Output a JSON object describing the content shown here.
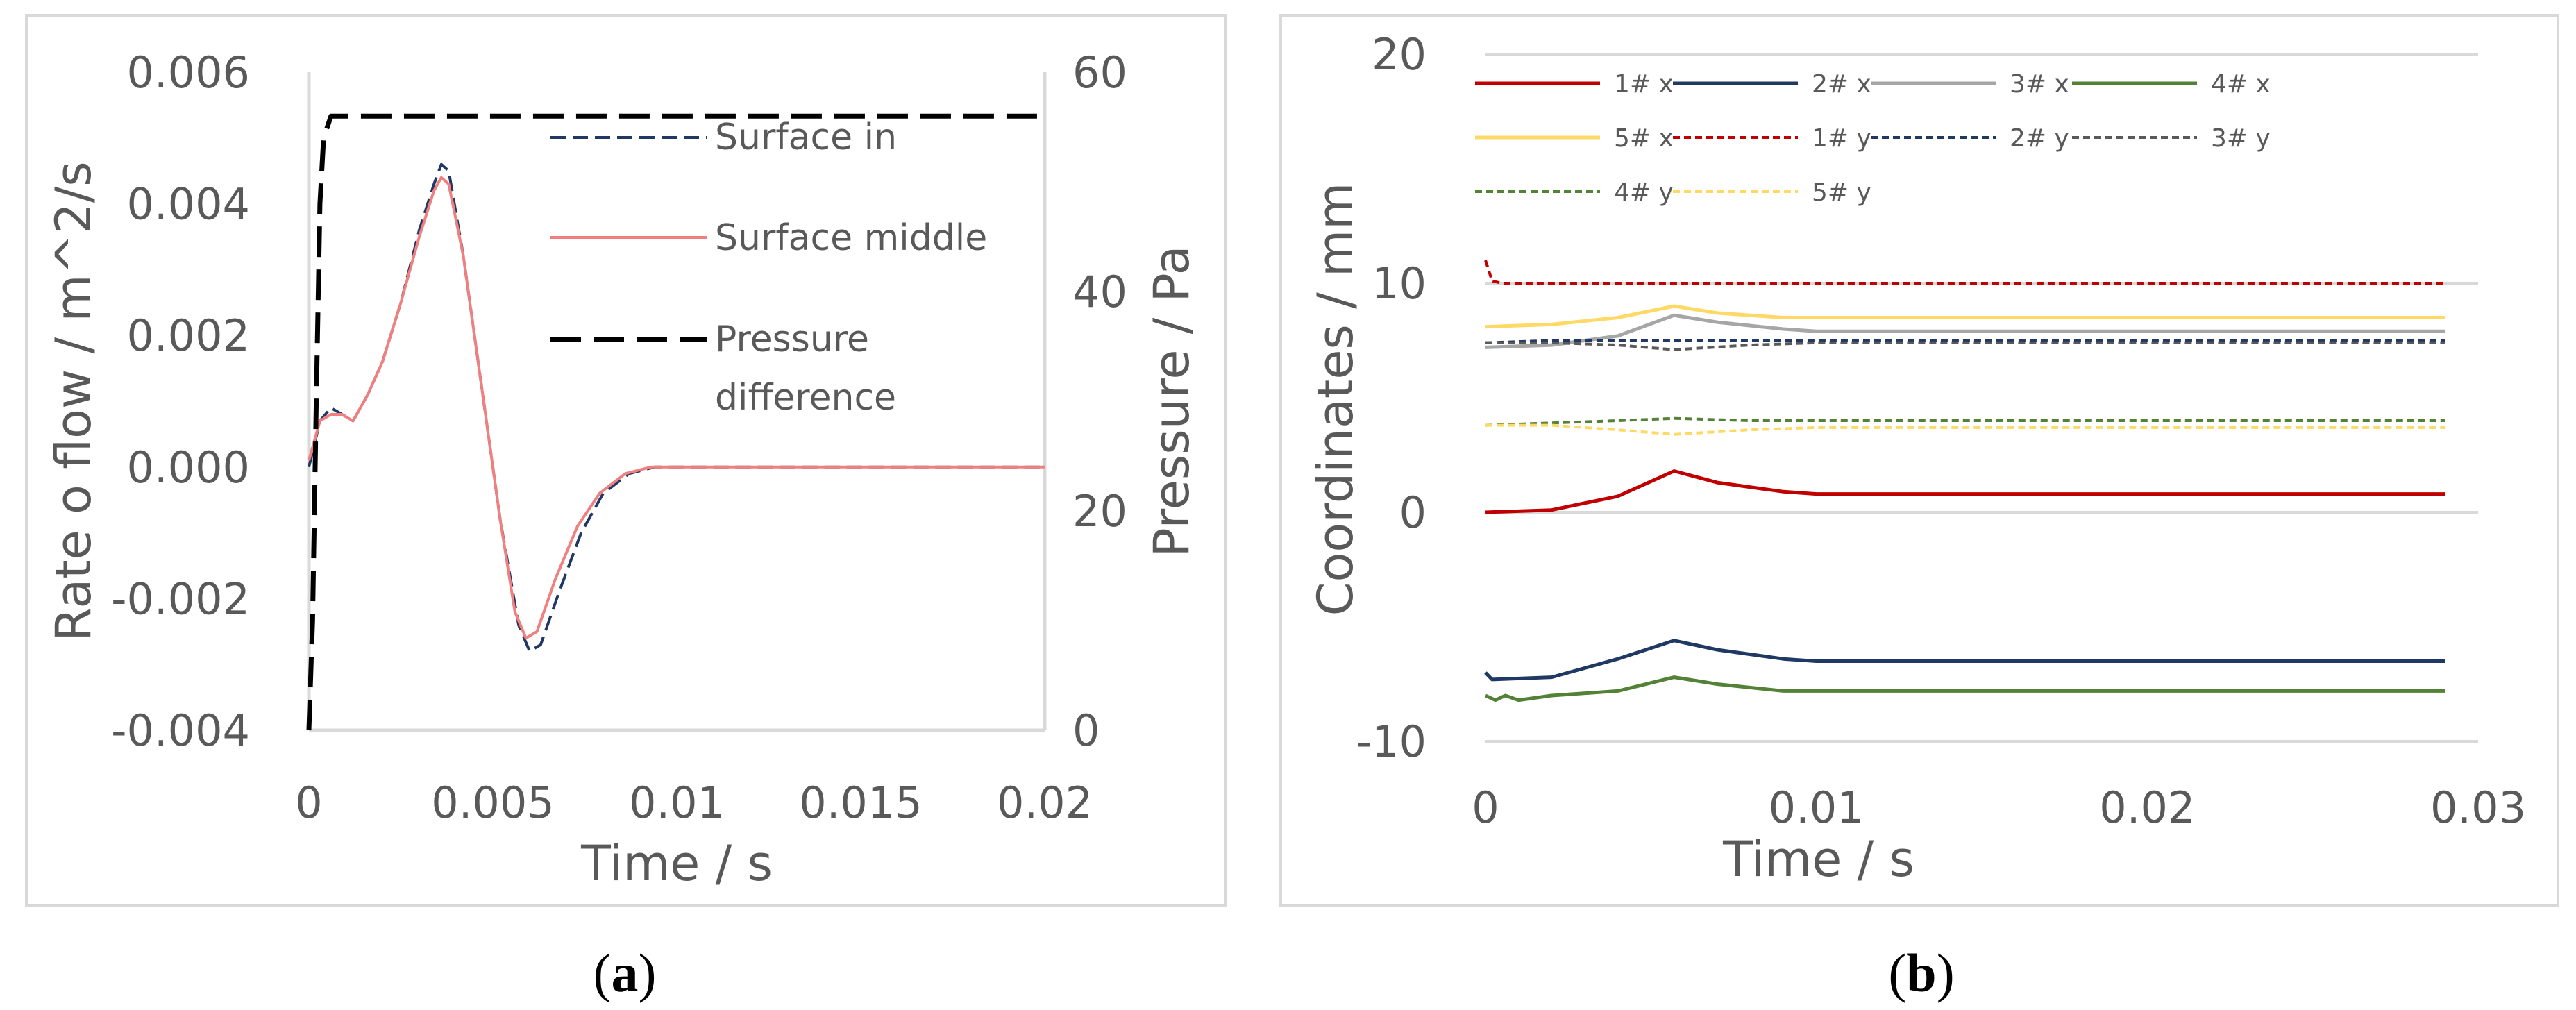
{
  "chart_data": [
    {
      "type": "line",
      "panel_label": "a",
      "xlabel": "Time / s",
      "ylabel": "Rate o flow / m^2/s",
      "y2label": "Pressure / Pa",
      "xlim": [
        0,
        0.02
      ],
      "ylim": [
        -0.004,
        0.006
      ],
      "y2lim": [
        0,
        60
      ],
      "xticks": [
        "0",
        "0.005",
        "0.01",
        "0.015",
        "0.02"
      ],
      "yticks": [
        "-0.004",
        "-0.002",
        "0.000",
        "0.002",
        "0.004",
        "0.006"
      ],
      "y2ticks": [
        "0",
        "20",
        "40",
        "60"
      ],
      "legend_position": "top-right",
      "series": [
        {
          "name": "Surface in",
          "axis": "left",
          "color": "#1f3864",
          "dash": "dashed",
          "x": [
            0,
            0.0003,
            0.0006,
            0.0009,
            0.0012,
            0.0016,
            0.002,
            0.0025,
            0.003,
            0.0034,
            0.0036,
            0.0038,
            0.0042,
            0.0047,
            0.0052,
            0.0057,
            0.006,
            0.0063,
            0.0068,
            0.0074,
            0.008,
            0.0087,
            0.0094,
            0.01,
            0.012,
            0.014,
            0.016,
            0.018,
            0.02
          ],
          "y": [
            0.0,
            0.0007,
            0.0009,
            0.0008,
            0.0007,
            0.0011,
            0.0016,
            0.0025,
            0.0036,
            0.0043,
            0.0046,
            0.0045,
            0.0032,
            0.0012,
            -0.0008,
            -0.0024,
            -0.0028,
            -0.0027,
            -0.0019,
            -0.001,
            -0.0004,
            -0.0001,
            0.0,
            0.0,
            0.0,
            0.0,
            0.0,
            0.0,
            0.0
          ]
        },
        {
          "name": "Surface middle",
          "axis": "left",
          "color": "#f08080",
          "dash": "solid",
          "x": [
            0,
            0.0003,
            0.0006,
            0.0009,
            0.0012,
            0.0016,
            0.002,
            0.0025,
            0.003,
            0.0034,
            0.0036,
            0.0038,
            0.0042,
            0.0047,
            0.0052,
            0.0056,
            0.0059,
            0.0062,
            0.0067,
            0.0073,
            0.0079,
            0.0086,
            0.0093,
            0.01,
            0.012,
            0.014,
            0.016,
            0.018,
            0.02
          ],
          "y": [
            0.0001,
            0.0007,
            0.0008,
            0.0008,
            0.0007,
            0.0011,
            0.0016,
            0.0025,
            0.0035,
            0.0042,
            0.0044,
            0.0043,
            0.0032,
            0.0012,
            -0.0008,
            -0.0022,
            -0.0026,
            -0.0025,
            -0.0017,
            -0.0009,
            -0.0004,
            -0.0001,
            0.0,
            0.0,
            0.0,
            0.0,
            0.0,
            0.0,
            0.0
          ]
        },
        {
          "name": "Pressure difference",
          "axis": "right",
          "color": "#000000",
          "dash": "longdash",
          "x": [
            0,
            0.0001,
            0.0002,
            0.0003,
            0.0004,
            0.0006,
            0.001,
            0.005,
            0.01,
            0.015,
            0.02
          ],
          "y": [
            0,
            10,
            30,
            48,
            54,
            56,
            56,
            56,
            56,
            56,
            56
          ]
        }
      ]
    },
    {
      "type": "line",
      "panel_label": "b",
      "xlabel": "Time / s",
      "ylabel": "Coordinates / mm",
      "xlim": [
        0,
        0.03
      ],
      "ylim": [
        -10,
        20
      ],
      "xticks": [
        "0",
        "0.01",
        "0.02",
        "0.03"
      ],
      "yticks": [
        "-10",
        "0",
        "10",
        "20"
      ],
      "legend_position": "top",
      "series": [
        {
          "name": "1# x",
          "color": "#c00000",
          "dash": "solid",
          "x": [
            0,
            0.002,
            0.004,
            0.0057,
            0.007,
            0.009,
            0.01,
            0.02,
            0.029
          ],
          "y": [
            0.0,
            0.1,
            0.7,
            1.8,
            1.3,
            0.9,
            0.8,
            0.8,
            0.8
          ]
        },
        {
          "name": "2# x",
          "color": "#1f3864",
          "dash": "solid",
          "x": [
            0,
            0.0002,
            0.002,
            0.004,
            0.0057,
            0.007,
            0.009,
            0.01,
            0.02,
            0.029
          ],
          "y": [
            -7.0,
            -7.3,
            -7.2,
            -6.4,
            -5.6,
            -6.0,
            -6.4,
            -6.5,
            -6.5,
            -6.5
          ]
        },
        {
          "name": "3# x",
          "color": "#a6a6a6",
          "dash": "solid",
          "x": [
            0,
            0.002,
            0.004,
            0.0057,
            0.007,
            0.009,
            0.01,
            0.02,
            0.029
          ],
          "y": [
            7.2,
            7.3,
            7.7,
            8.6,
            8.3,
            8.0,
            7.9,
            7.9,
            7.9
          ]
        },
        {
          "name": "4# x",
          "color": "#538135",
          "dash": "solid",
          "x": [
            0,
            0.0003,
            0.0006,
            0.001,
            0.002,
            0.004,
            0.0057,
            0.007,
            0.009,
            0.01,
            0.02,
            0.029
          ],
          "y": [
            -8.0,
            -8.2,
            -8.0,
            -8.2,
            -8.0,
            -7.8,
            -7.2,
            -7.5,
            -7.8,
            -7.8,
            -7.8,
            -7.8
          ]
        },
        {
          "name": "5# x",
          "color": "#ffd966",
          "dash": "solid",
          "x": [
            0,
            0.002,
            0.004,
            0.0057,
            0.007,
            0.009,
            0.01,
            0.02,
            0.029
          ],
          "y": [
            8.1,
            8.2,
            8.5,
            9.0,
            8.7,
            8.5,
            8.5,
            8.5,
            8.5
          ]
        },
        {
          "name": "1# y",
          "color": "#c00000",
          "dash": "dashed",
          "x": [
            0,
            0.0002,
            0.0005,
            0.002,
            0.01,
            0.02,
            0.029
          ],
          "y": [
            11.0,
            10.1,
            10.0,
            10.0,
            10.0,
            10.0,
            10.0
          ]
        },
        {
          "name": "2# y",
          "color": "#1f3864",
          "dash": "dashed",
          "x": [
            0,
            0.002,
            0.004,
            0.0057,
            0.008,
            0.01,
            0.02,
            0.029
          ],
          "y": [
            7.4,
            7.5,
            7.5,
            7.5,
            7.5,
            7.5,
            7.5,
            7.5
          ]
        },
        {
          "name": "3# y",
          "color": "#595959",
          "dash": "dashed",
          "x": [
            0,
            0.002,
            0.004,
            0.0057,
            0.008,
            0.01,
            0.02,
            0.029
          ],
          "y": [
            7.4,
            7.4,
            7.3,
            7.1,
            7.3,
            7.4,
            7.4,
            7.4
          ]
        },
        {
          "name": "4# y",
          "color": "#538135",
          "dash": "dashed",
          "x": [
            0,
            0.002,
            0.004,
            0.0057,
            0.008,
            0.01,
            0.02,
            0.029
          ],
          "y": [
            3.8,
            3.9,
            4.0,
            4.1,
            4.0,
            4.0,
            4.0,
            4.0
          ]
        },
        {
          "name": "5# y",
          "color": "#ffd966",
          "dash": "dashed",
          "x": [
            0,
            0.002,
            0.004,
            0.0057,
            0.008,
            0.01,
            0.02,
            0.029
          ],
          "y": [
            3.8,
            3.8,
            3.6,
            3.4,
            3.6,
            3.7,
            3.7,
            3.7
          ]
        }
      ]
    }
  ]
}
